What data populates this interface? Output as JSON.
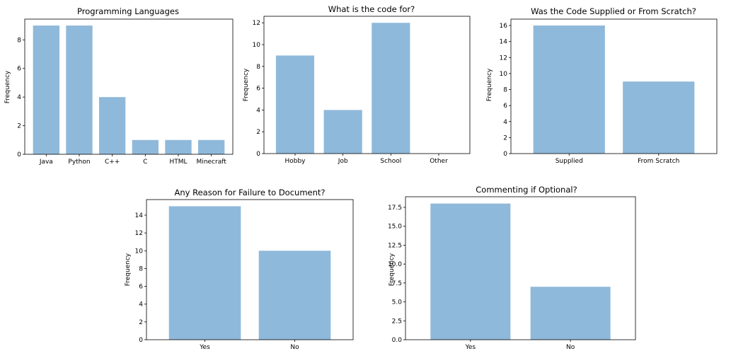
{
  "chart_data": [
    {
      "type": "bar",
      "title": "Programming Languages",
      "ylabel": "Frequency",
      "xlabel": "",
      "categories": [
        "Java",
        "Python",
        "C++",
        "C",
        "HTML",
        "Minecraft"
      ],
      "values": [
        9,
        9,
        4,
        1,
        1,
        1
      ],
      "ylim": [
        0,
        9.45
      ],
      "yticks": [
        "0",
        "2",
        "4",
        "6",
        "8"
      ],
      "ytick_values": [
        0,
        2,
        4,
        6,
        8
      ],
      "color": "#8fb9da",
      "grid": false
    },
    {
      "type": "bar",
      "title": "What is the code for?",
      "ylabel": "Frequency",
      "xlabel": "",
      "categories": [
        "Hobby",
        "Job",
        "School",
        "Other"
      ],
      "values": [
        9,
        4,
        12,
        0
      ],
      "ylim": [
        0,
        12.6
      ],
      "yticks": [
        "0",
        "2",
        "4",
        "6",
        "8",
        "10",
        "12"
      ],
      "ytick_values": [
        0,
        2,
        4,
        6,
        8,
        10,
        12
      ],
      "color": "#8fb9da",
      "grid": false
    },
    {
      "type": "bar",
      "title": "Was the Code Supplied or From Scratch?",
      "ylabel": "Frequency",
      "xlabel": "",
      "categories": [
        "Supplied",
        "From Scratch"
      ],
      "values": [
        16,
        9
      ],
      "ylim": [
        0,
        16.8
      ],
      "yticks": [
        "0",
        "2",
        "4",
        "6",
        "8",
        "10",
        "12",
        "14",
        "16"
      ],
      "ytick_values": [
        0,
        2,
        4,
        6,
        8,
        10,
        12,
        14,
        16
      ],
      "color": "#8fb9da",
      "grid": false
    },
    {
      "type": "bar",
      "title": "Any Reason for Failure to Document?",
      "ylabel": "Frequency",
      "xlabel": "",
      "categories": [
        "Yes",
        "No"
      ],
      "values": [
        15,
        10
      ],
      "ylim": [
        0,
        15.75
      ],
      "yticks": [
        "0",
        "2",
        "4",
        "6",
        "8",
        "10",
        "12",
        "14"
      ],
      "ytick_values": [
        0,
        2,
        4,
        6,
        8,
        10,
        12,
        14
      ],
      "color": "#8fb9da",
      "grid": false
    },
    {
      "type": "bar",
      "title": "Commenting if Optional?",
      "ylabel": "Frequency",
      "xlabel": "",
      "categories": [
        "Yes",
        "No"
      ],
      "values": [
        18,
        7
      ],
      "ylim": [
        0,
        18.9
      ],
      "yticks": [
        "0.0",
        "2.5",
        "5.0",
        "7.5",
        "10.0",
        "12.5",
        "15.0",
        "17.5"
      ],
      "ytick_values": [
        0,
        2.5,
        5,
        7.5,
        10,
        12.5,
        15,
        17.5
      ],
      "color": "#8fb9da",
      "grid": false
    }
  ]
}
